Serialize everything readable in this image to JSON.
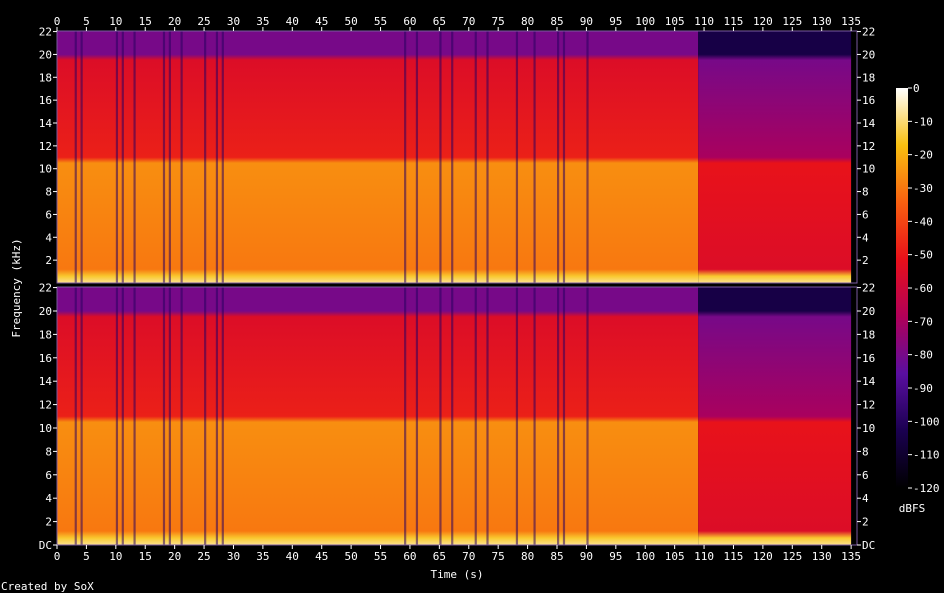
{
  "chart_data": {
    "type": "heatmap",
    "title": "",
    "xlabel": "Time (s)",
    "ylabel": "Frequency (kHz)",
    "xlim": [
      0,
      136
    ],
    "x_ticks": [
      0,
      5,
      10,
      15,
      20,
      25,
      30,
      35,
      40,
      45,
      50,
      55,
      60,
      65,
      70,
      75,
      80,
      85,
      90,
      95,
      100,
      105,
      110,
      115,
      120,
      125,
      130,
      135
    ],
    "x_tick_labels": [
      "0",
      "5",
      "10",
      "15",
      "20",
      "25",
      "30",
      "35",
      "40",
      "45",
      "50",
      "55",
      "60",
      "65",
      "70",
      "75",
      "80",
      "85",
      "90",
      "95",
      "100",
      "105",
      "110",
      "115",
      "120",
      "125",
      "130",
      "135"
    ],
    "channels": [
      {
        "ylim_khz": [
          0,
          22.05
        ],
        "y_ticks": [
          2,
          4,
          6,
          8,
          10,
          12,
          14,
          16,
          18,
          20,
          22
        ],
        "y_tick_labels": [
          "2",
          "4",
          "6",
          "8",
          "10",
          "12",
          "14",
          "16",
          "18",
          "20",
          "22"
        ],
        "bottom_label": ""
      },
      {
        "ylim_khz": [
          0,
          22.05
        ],
        "y_ticks": [
          0,
          2,
          4,
          6,
          8,
          10,
          12,
          14,
          16,
          18,
          20,
          22
        ],
        "y_tick_labels": [
          "DC",
          "2",
          "4",
          "6",
          "8",
          "10",
          "12",
          "14",
          "16",
          "18",
          "20",
          "22"
        ],
        "bottom_label": "DC"
      }
    ],
    "colorbar": {
      "label": "dBFS",
      "range": [
        -120,
        0
      ],
      "ticks": [
        0,
        -10,
        -20,
        -30,
        -40,
        -50,
        -60,
        -70,
        -80,
        -90,
        -100,
        -110,
        -120
      ],
      "tick_labels": [
        "0",
        "-10",
        "-20",
        "-30",
        "-40",
        "-50",
        "-60",
        "-70",
        "-80",
        "-90",
        "-100",
        "-110",
        "-120"
      ],
      "colors": [
        "#000000",
        "#1a0050",
        "#5a0ea0",
        "#b00058",
        "#e8101a",
        "#f86010",
        "#f8c010",
        "#ffffff"
      ]
    },
    "segments": [
      {
        "start_s": 0,
        "end_s": 109,
        "level_low_khz_dbfs": -30,
        "level_mid_khz_dbfs": -48,
        "level_high_khz_dbfs": -55,
        "above_20khz_dbfs": -80
      },
      {
        "start_s": 109,
        "end_s": 135,
        "level_low_khz_dbfs": -55,
        "level_mid_khz_dbfs": -70,
        "level_high_khz_dbfs": -80,
        "above_20khz_dbfs": -105
      }
    ],
    "quiet_gaps_s": [
      3,
      4,
      10,
      11,
      13,
      18,
      19,
      21,
      25,
      27,
      28,
      59,
      61,
      65,
      67,
      71,
      73,
      78,
      81,
      85,
      86,
      90
    ]
  },
  "footer": {
    "credit": "Created by SoX"
  }
}
